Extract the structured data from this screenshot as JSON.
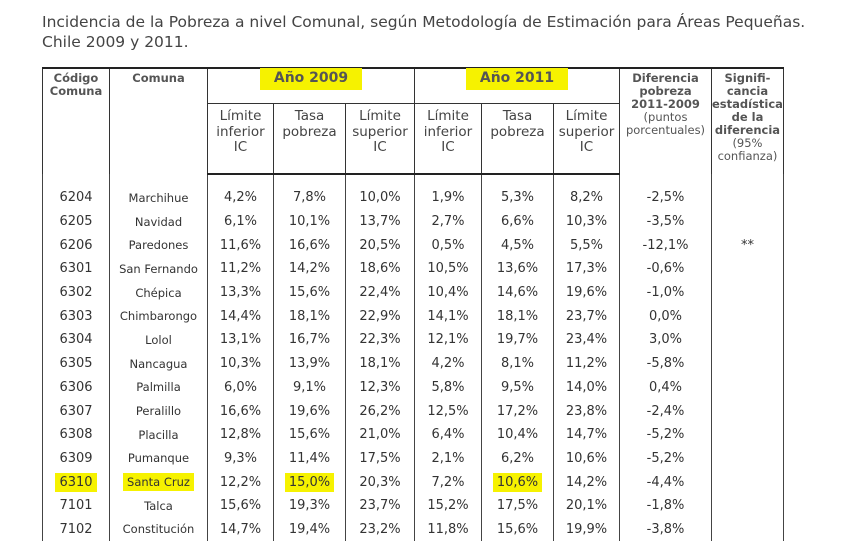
{
  "title_line1": "Incidencia de la Pobreza a nivel Comunal, según Metodología de Estimación para Áreas Pequeñas.",
  "title_line2": "Chile 2009 y 2011.",
  "headers": {
    "codigo": [
      "Código",
      "Comuna"
    ],
    "comuna": "Comuna",
    "anio2009": "Año 2009",
    "anio2011": "Año 2011",
    "diferencia": [
      "Diferencia",
      "pobreza",
      "2011-2009",
      "(puntos",
      "porcentuales)"
    ],
    "significancia": [
      "Signifi-",
      "cancia",
      "estadística",
      "de la",
      "diferencia",
      "(95%",
      "confianza)"
    ],
    "limite_inferior": [
      "Límite",
      "inferior",
      "IC"
    ],
    "tasa": [
      "Tasa",
      "pobreza"
    ],
    "limite_superior": [
      "Límite",
      "superior",
      "IC"
    ]
  },
  "highlight_color": "#f6f200",
  "rows": [
    {
      "code": "6204",
      "comuna": "Marchihue",
      "li09": "4,2%",
      "t09": "7,8%",
      "ls09": "10,0%",
      "li11": "1,9%",
      "t11": "5,3%",
      "ls11": "8,2%",
      "dif": "-2,5%",
      "sig": "",
      "hl": false
    },
    {
      "code": "6205",
      "comuna": "Navidad",
      "li09": "6,1%",
      "t09": "10,1%",
      "ls09": "13,7%",
      "li11": "2,7%",
      "t11": "6,6%",
      "ls11": "10,3%",
      "dif": "-3,5%",
      "sig": "",
      "hl": false
    },
    {
      "code": "6206",
      "comuna": "Paredones",
      "li09": "11,6%",
      "t09": "16,6%",
      "ls09": "20,5%",
      "li11": "0,5%",
      "t11": "4,5%",
      "ls11": "5,5%",
      "dif": "-12,1%",
      "sig": "**",
      "hl": false
    },
    {
      "code": "6301",
      "comuna": "San Fernando",
      "li09": "11,2%",
      "t09": "14,2%",
      "ls09": "18,6%",
      "li11": "10,5%",
      "t11": "13,6%",
      "ls11": "17,3%",
      "dif": "-0,6%",
      "sig": "",
      "hl": false
    },
    {
      "code": "6302",
      "comuna": "Chépica",
      "li09": "13,3%",
      "t09": "15,6%",
      "ls09": "22,4%",
      "li11": "10,4%",
      "t11": "14,6%",
      "ls11": "19,6%",
      "dif": "-1,0%",
      "sig": "",
      "hl": false
    },
    {
      "code": "6303",
      "comuna": "Chimbarongo",
      "li09": "14,4%",
      "t09": "18,1%",
      "ls09": "22,9%",
      "li11": "14,1%",
      "t11": "18,1%",
      "ls11": "23,7%",
      "dif": "0,0%",
      "sig": "",
      "hl": false
    },
    {
      "code": "6304",
      "comuna": "Lolol",
      "li09": "13,1%",
      "t09": "16,7%",
      "ls09": "22,3%",
      "li11": "12,1%",
      "t11": "19,7%",
      "ls11": "23,4%",
      "dif": "3,0%",
      "sig": "",
      "hl": false
    },
    {
      "code": "6305",
      "comuna": "Nancagua",
      "li09": "10,3%",
      "t09": "13,9%",
      "ls09": "18,1%",
      "li11": "4,2%",
      "t11": "8,1%",
      "ls11": "11,2%",
      "dif": "-5,8%",
      "sig": "",
      "hl": false
    },
    {
      "code": "6306",
      "comuna": "Palmilla",
      "li09": "6,0%",
      "t09": "9,1%",
      "ls09": "12,3%",
      "li11": "5,8%",
      "t11": "9,5%",
      "ls11": "14,0%",
      "dif": "0,4%",
      "sig": "",
      "hl": false
    },
    {
      "code": "6307",
      "comuna": "Peralillo",
      "li09": "16,6%",
      "t09": "19,6%",
      "ls09": "26,2%",
      "li11": "12,5%",
      "t11": "17,2%",
      "ls11": "23,8%",
      "dif": "-2,4%",
      "sig": "",
      "hl": false
    },
    {
      "code": "6308",
      "comuna": "Placilla",
      "li09": "12,8%",
      "t09": "15,6%",
      "ls09": "21,0%",
      "li11": "6,4%",
      "t11": "10,4%",
      "ls11": "14,7%",
      "dif": "-5,2%",
      "sig": "",
      "hl": false
    },
    {
      "code": "6309",
      "comuna": "Pumanque",
      "li09": "9,3%",
      "t09": "11,4%",
      "ls09": "17,5%",
      "li11": "2,1%",
      "t11": "6,2%",
      "ls11": "10,6%",
      "dif": "-5,2%",
      "sig": "",
      "hl": false
    },
    {
      "code": "6310",
      "comuna": "Santa Cruz",
      "li09": "12,2%",
      "t09": "15,0%",
      "ls09": "20,3%",
      "li11": "7,2%",
      "t11": "10,6%",
      "ls11": "14,2%",
      "dif": "-4,4%",
      "sig": "",
      "hl": true
    },
    {
      "code": "7101",
      "comuna": "Talca",
      "li09": "15,6%",
      "t09": "19,3%",
      "ls09": "23,7%",
      "li11": "15,2%",
      "t11": "17,5%",
      "ls11": "20,1%",
      "dif": "-1,8%",
      "sig": "",
      "hl": false
    },
    {
      "code": "7102",
      "comuna": "Constitución",
      "li09": "14,7%",
      "t09": "19,4%",
      "ls09": "23,2%",
      "li11": "11,8%",
      "t11": "15,6%",
      "ls11": "19,9%",
      "dif": "-3,8%",
      "sig": "",
      "hl": false
    }
  ]
}
